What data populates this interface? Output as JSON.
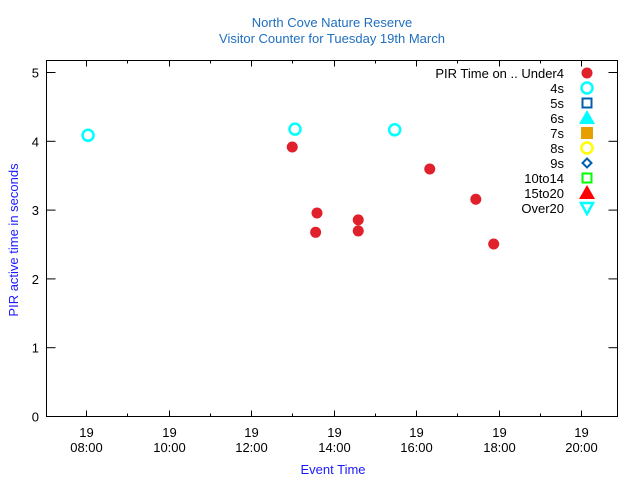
{
  "chart_data": {
    "type": "scatter",
    "title": "North Cove Nature Reserve",
    "subtitle": "Visitor Counter for Tuesday 19th March",
    "xlabel": "Event Time",
    "ylabel": "PIR active time in seconds",
    "xlim_hours": [
      7.03,
      20.9
    ],
    "ylim": [
      0,
      5.17
    ],
    "x_ticks": [
      {
        "hour": 8,
        "day": "19",
        "time": "08:00"
      },
      {
        "hour": 10,
        "day": "19",
        "time": "10:00"
      },
      {
        "hour": 12,
        "day": "19",
        "time": "12:00"
      },
      {
        "hour": 14,
        "day": "19",
        "time": "14:00"
      },
      {
        "hour": 16,
        "day": "19",
        "time": "16:00"
      },
      {
        "hour": 18,
        "day": "19",
        "time": "18:00"
      },
      {
        "hour": 20,
        "day": "19",
        "time": "20:00"
      }
    ],
    "y_ticks": [
      "0",
      "1",
      "2",
      "3",
      "4",
      "5"
    ],
    "legend_title": "PIR Time on ..",
    "legend_position": "top-right",
    "series": [
      {
        "name": "Under4",
        "marker": "filled-circle",
        "color": "#e0202a",
        "points": [
          [
            "13:00",
            3.91
          ],
          [
            "13:36",
            2.95
          ],
          [
            "13:34",
            2.67
          ],
          [
            "14:36",
            2.85
          ],
          [
            "14:36",
            2.69
          ],
          [
            "16:20",
            3.59
          ],
          [
            "17:27",
            3.15
          ],
          [
            "17:53",
            2.5
          ]
        ]
      },
      {
        "name": "4s",
        "marker": "open-circle",
        "color": "#00ffff",
        "points": [
          [
            "08:03",
            4.08
          ],
          [
            "13:04",
            4.17
          ],
          [
            "15:29",
            4.16
          ]
        ]
      },
      {
        "name": "5s",
        "marker": "open-square",
        "color": "#0060ad",
        "points": []
      },
      {
        "name": "6s",
        "marker": "filled-triangle",
        "color": "#00ffff",
        "points": []
      },
      {
        "name": "7s",
        "marker": "filled-square",
        "color": "#e69f00",
        "points": []
      },
      {
        "name": "8s",
        "marker": "open-circle",
        "color": "#ffff00",
        "points": []
      },
      {
        "name": "9s",
        "marker": "open-diamond",
        "color": "#0060ad",
        "points": []
      },
      {
        "name": "10to14",
        "marker": "open-square",
        "color": "#00ff00",
        "points": []
      },
      {
        "name": "15to20",
        "marker": "filled-triangle",
        "color": "#ff0000",
        "points": []
      },
      {
        "name": "Over20",
        "marker": "open-triangle-down",
        "color": "#00ffff",
        "points": []
      }
    ]
  }
}
